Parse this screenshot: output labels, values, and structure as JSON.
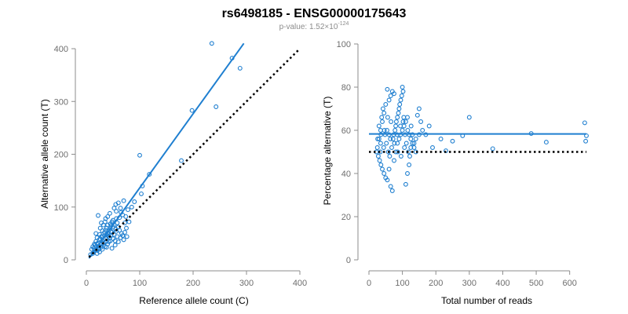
{
  "figure": {
    "title": "rs6498185 - ENSG00000175643",
    "subtitle_prefix": "p-value: 1.52",
    "subtitle_times": "×",
    "subtitle_base": "10",
    "subtitle_exp": "-124"
  },
  "colors": {
    "points": "#1f7fd0",
    "fit": "#1f7fd0",
    "reference": "#000000",
    "axis": "#8c8c8c"
  },
  "chart_data": [
    {
      "type": "scatter",
      "title": "",
      "xlabel": "Reference allele count (C)",
      "ylabel": "Alternative allele count (T)",
      "xlim": [
        0,
        400
      ],
      "ylim": [
        0,
        400
      ],
      "xticks": [
        0,
        100,
        200,
        300,
        400
      ],
      "yticks": [
        0,
        100,
        200,
        300,
        400
      ],
      "grid": false,
      "fit_line": {
        "x": [
          5,
          295
        ],
        "y": [
          3,
          410
        ]
      },
      "reference_line": {
        "x": [
          5,
          400
        ],
        "y": [
          5,
          400
        ]
      },
      "points": [
        [
          235,
          410
        ],
        [
          273,
          382
        ],
        [
          288,
          363
        ],
        [
          198,
          283
        ],
        [
          243,
          290
        ],
        [
          100,
          198
        ],
        [
          178,
          188
        ],
        [
          118,
          162
        ],
        [
          105,
          140
        ],
        [
          103,
          125
        ],
        [
          90,
          110
        ],
        [
          85,
          100
        ],
        [
          70,
          112
        ],
        [
          60,
          108
        ],
        [
          55,
          105
        ],
        [
          52,
          98
        ],
        [
          78,
          95
        ],
        [
          65,
          90
        ],
        [
          40,
          82
        ],
        [
          22,
          84
        ],
        [
          28,
          70
        ],
        [
          35,
          72
        ],
        [
          45,
          68
        ],
        [
          50,
          75
        ],
        [
          62,
          80
        ],
        [
          72,
          70
        ],
        [
          38,
          60
        ],
        [
          30,
          55
        ],
        [
          25,
          48
        ],
        [
          20,
          42
        ],
        [
          18,
          35
        ],
        [
          15,
          30
        ],
        [
          12,
          25
        ],
        [
          10,
          20
        ],
        [
          14,
          15
        ],
        [
          22,
          22
        ],
        [
          28,
          30
        ],
        [
          33,
          38
        ],
        [
          42,
          45
        ],
        [
          48,
          52
        ],
        [
          55,
          58
        ],
        [
          60,
          62
        ],
        [
          66,
          50
        ],
        [
          58,
          44
        ],
        [
          50,
          40
        ],
        [
          45,
          36
        ],
        [
          40,
          30
        ],
        [
          35,
          25
        ],
        [
          30,
          20
        ],
        [
          25,
          15
        ],
        [
          20,
          12
        ],
        [
          16,
          18
        ],
        [
          12,
          12
        ],
        [
          8,
          10
        ],
        [
          48,
          22
        ],
        [
          54,
          28
        ],
        [
          60,
          34
        ],
        [
          70,
          38
        ],
        [
          75,
          60
        ],
        [
          80,
          72
        ],
        [
          38,
          48
        ],
        [
          42,
          56
        ],
        [
          46,
          64
        ],
        [
          34,
          52
        ],
        [
          26,
          60
        ],
        [
          32,
          66
        ],
        [
          36,
          78
        ],
        [
          44,
          88
        ],
        [
          56,
          92
        ],
        [
          64,
          98
        ],
        [
          68,
          85
        ],
        [
          74,
          82
        ],
        [
          18,
          50
        ],
        [
          24,
          38
        ],
        [
          30,
          44
        ],
        [
          36,
          40
        ],
        [
          40,
          50
        ],
        [
          44,
          42
        ],
        [
          52,
          48
        ],
        [
          56,
          54
        ],
        [
          62,
          56
        ],
        [
          68,
          46
        ],
        [
          72,
          52
        ],
        [
          76,
          44
        ],
        [
          16,
          28
        ],
        [
          20,
          30
        ],
        [
          24,
          26
        ],
        [
          28,
          24
        ],
        [
          32,
          32
        ],
        [
          36,
          34
        ],
        [
          44,
          60
        ],
        [
          52,
          66
        ],
        [
          58,
          70
        ],
        [
          48,
          72
        ],
        [
          40,
          66
        ],
        [
          30,
          36
        ],
        [
          22,
          32
        ],
        [
          26,
          40
        ],
        [
          34,
          46
        ],
        [
          42,
          34
        ],
        [
          46,
          46
        ],
        [
          54,
          36
        ],
        [
          64,
          42
        ],
        [
          38,
          24
        ],
        [
          32,
          28
        ],
        [
          56,
          78
        ],
        [
          50,
          62
        ],
        [
          46,
          54
        ],
        [
          14,
          22
        ],
        [
          18,
          24
        ],
        [
          20,
          18
        ],
        [
          24,
          20
        ],
        [
          28,
          44
        ],
        [
          36,
          56
        ]
      ]
    },
    {
      "type": "scatter",
      "title": "",
      "xlabel": "Total number of reads",
      "ylabel": "Percentage alternative (T)",
      "xlim": [
        0,
        650
      ],
      "ylim": [
        0,
        100
      ],
      "xticks": [
        0,
        100,
        200,
        300,
        400,
        500,
        600
      ],
      "yticks": [
        0,
        20,
        40,
        60,
        80,
        100
      ],
      "grid": false,
      "fit_line": {
        "x": [
          0,
          650
        ],
        "y": [
          58.3,
          58.3
        ]
      },
      "reference_line": {
        "x": [
          0,
          650
        ],
        "y": [
          50,
          50
        ]
      },
      "points": [
        [
          645,
          63.5
        ],
        [
          650,
          57.5
        ],
        [
          648,
          55
        ],
        [
          485,
          58.5
        ],
        [
          530,
          54.5
        ],
        [
          370,
          51.5
        ],
        [
          300,
          66
        ],
        [
          280,
          57.5
        ],
        [
          250,
          55
        ],
        [
          230,
          50.5
        ],
        [
          215,
          56
        ],
        [
          190,
          52
        ],
        [
          180,
          62
        ],
        [
          170,
          58
        ],
        [
          160,
          60
        ],
        [
          155,
          64
        ],
        [
          150,
          70
        ],
        [
          145,
          67
        ],
        [
          140,
          56
        ],
        [
          135,
          54
        ],
        [
          130,
          58
        ],
        [
          125,
          52
        ],
        [
          120,
          44
        ],
        [
          115,
          40
        ],
        [
          110,
          35
        ],
        [
          100,
          80
        ],
        [
          102,
          78
        ],
        [
          95,
          74
        ],
        [
          90,
          70
        ],
        [
          85,
          66
        ],
        [
          80,
          62
        ],
        [
          75,
          77
        ],
        [
          70,
          78
        ],
        [
          65,
          76
        ],
        [
          60,
          74
        ],
        [
          55,
          79
        ],
        [
          50,
          72
        ],
        [
          45,
          68
        ],
        [
          40,
          64
        ],
        [
          35,
          60
        ],
        [
          30,
          56
        ],
        [
          25,
          52
        ],
        [
          28,
          48
        ],
        [
          32,
          46
        ],
        [
          36,
          44
        ],
        [
          40,
          42
        ],
        [
          45,
          40
        ],
        [
          50,
          38
        ],
        [
          55,
          37
        ],
        [
          60,
          42
        ],
        [
          65,
          34
        ],
        [
          70,
          32
        ],
        [
          75,
          46
        ],
        [
          80,
          50
        ],
        [
          85,
          54
        ],
        [
          90,
          56
        ],
        [
          95,
          58
        ],
        [
          100,
          60
        ],
        [
          105,
          62
        ],
        [
          110,
          64
        ],
        [
          115,
          66
        ],
        [
          120,
          58
        ],
        [
          125,
          56
        ],
        [
          130,
          54
        ],
        [
          135,
          52
        ],
        [
          140,
          50
        ],
        [
          30,
          62
        ],
        [
          38,
          66
        ],
        [
          42,
          70
        ],
        [
          48,
          58
        ],
        [
          52,
          54
        ],
        [
          58,
          50
        ],
        [
          62,
          48
        ],
        [
          68,
          52
        ],
        [
          72,
          56
        ],
        [
          78,
          60
        ],
        [
          82,
          64
        ],
        [
          88,
          68
        ],
        [
          92,
          72
        ],
        [
          98,
          76
        ],
        [
          104,
          66
        ],
        [
          108,
          58
        ],
        [
          112,
          54
        ],
        [
          118,
          50
        ],
        [
          122,
          48
        ],
        [
          35,
          54
        ],
        [
          44,
          52
        ],
        [
          54,
          60
        ],
        [
          64,
          56
        ],
        [
          74,
          58
        ],
        [
          84,
          58
        ],
        [
          94,
          62
        ],
        [
          102,
          64
        ],
        [
          66,
          64
        ],
        [
          56,
          66
        ],
        [
          46,
          60
        ],
        [
          36,
          58
        ],
        [
          26,
          56
        ],
        [
          22,
          50
        ],
        [
          34,
          50
        ],
        [
          60,
          58
        ],
        [
          76,
          54
        ],
        [
          86,
          50
        ],
        [
          96,
          48
        ],
        [
          106,
          52
        ],
        [
          116,
          60
        ],
        [
          126,
          62
        ],
        [
          150,
          58
        ]
      ]
    }
  ]
}
